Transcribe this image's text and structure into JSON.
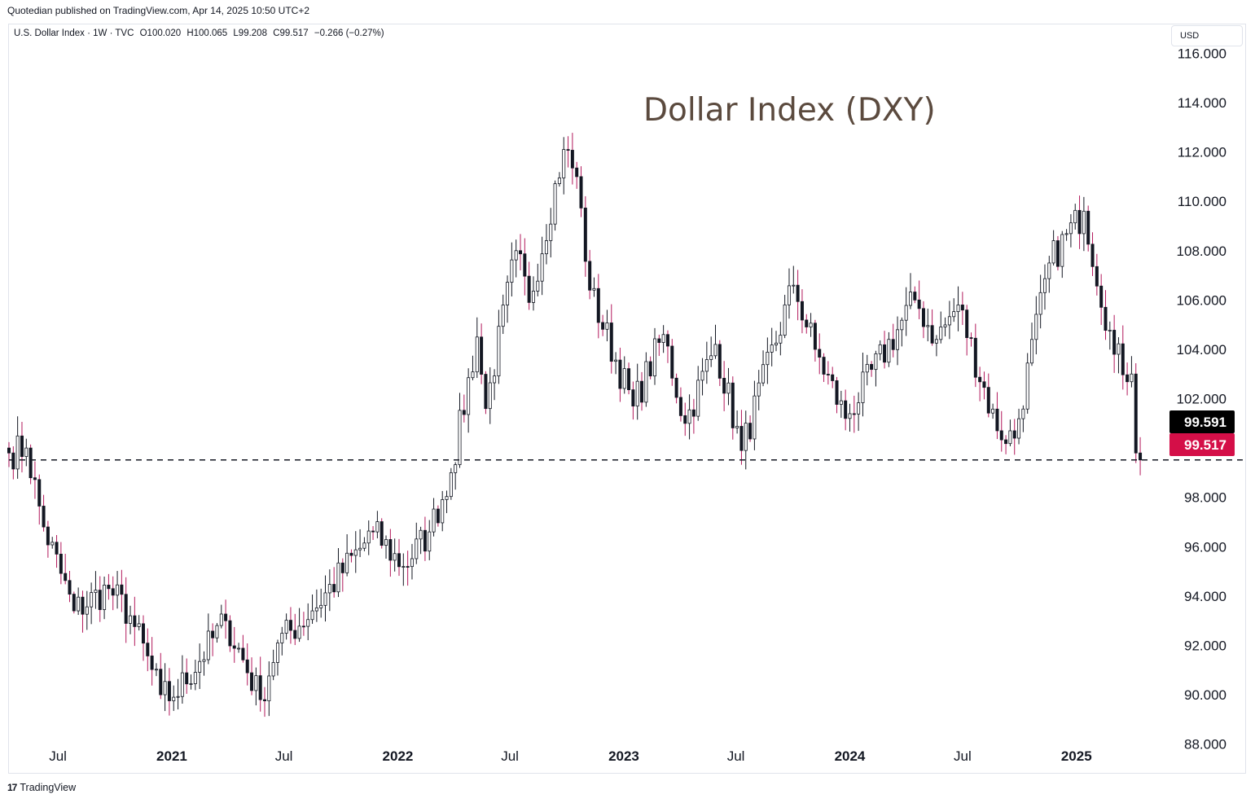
{
  "publisher_line": "Quotedian published on TradingView.com, Apr 14, 2025 10:50 UTC+2",
  "legend": {
    "symbol": "U.S. Dollar Index · 1W · TVC",
    "open": "O100.020",
    "high": "H100.065",
    "low": "L99.208",
    "close": "C99.517",
    "change": "−0.266 (−0.27%)"
  },
  "currency": "USD",
  "footer": "TradingView",
  "colors": {
    "up": "#131722",
    "down_body": "#131722",
    "down_wick": "#b2185b",
    "label_black": "#000000",
    "label_red": "#d40f48",
    "annotation": "#5b4a3e"
  },
  "chart_data": {
    "type": "candlestick",
    "title": "Dollar Index (DXY)",
    "interval": "1W",
    "y_axis": {
      "side": "right",
      "ticks": [
        "116.000",
        "114.000",
        "112.000",
        "110.000",
        "108.000",
        "106.000",
        "104.000",
        "102.000",
        "100.000",
        "98.000",
        "96.000",
        "94.000",
        "92.000",
        "90.000",
        "88.000"
      ],
      "range": [
        86.8,
        117.5
      ]
    },
    "x_axis": {
      "range": [
        "2020-04-13",
        "2025-05-26"
      ],
      "ticks": [
        {
          "label": "Jul",
          "date": "2020-07-01",
          "bold": false
        },
        {
          "label": "2021",
          "date": "2021-01-01",
          "bold": true
        },
        {
          "label": "Jul",
          "date": "2021-07-01",
          "bold": false
        },
        {
          "label": "2022",
          "date": "2022-01-01",
          "bold": true
        },
        {
          "label": "Jul",
          "date": "2022-07-01",
          "bold": false
        },
        {
          "label": "2023",
          "date": "2023-01-01",
          "bold": true
        },
        {
          "label": "Jul",
          "date": "2023-07-01",
          "bold": false
        },
        {
          "label": "2024",
          "date": "2024-01-01",
          "bold": true
        },
        {
          "label": "Jul",
          "date": "2024-07-01",
          "bold": false
        },
        {
          "label": "2025",
          "date": "2025-01-01",
          "bold": true
        }
      ]
    },
    "price_labels": [
      {
        "value": 99.591,
        "text": "99.591",
        "color": "#000000"
      },
      {
        "value": 99.517,
        "text": "99.517",
        "color": "#d40f48"
      }
    ],
    "horizontal_line": {
      "value": 99.517,
      "style": "dashed"
    },
    "anchors": [
      {
        "date": "2020-04-13",
        "close": 99.8
      },
      {
        "date": "2020-05-11",
        "close": 100.0
      },
      {
        "date": "2020-06-08",
        "close": 96.8
      },
      {
        "date": "2020-07-27",
        "close": 93.4
      },
      {
        "date": "2020-09-21",
        "close": 94.3
      },
      {
        "date": "2020-10-26",
        "close": 93.2
      },
      {
        "date": "2020-12-14",
        "close": 90.0
      },
      {
        "date": "2021-01-04",
        "close": 89.9
      },
      {
        "date": "2021-03-29",
        "close": 93.0
      },
      {
        "date": "2021-05-24",
        "close": 89.8
      },
      {
        "date": "2021-06-21",
        "close": 92.1
      },
      {
        "date": "2021-08-16",
        "close": 93.4
      },
      {
        "date": "2021-11-22",
        "close": 96.6
      },
      {
        "date": "2022-01-10",
        "close": 95.2
      },
      {
        "date": "2022-02-21",
        "close": 96.6
      },
      {
        "date": "2022-03-28",
        "close": 99.0
      },
      {
        "date": "2022-05-09",
        "close": 104.5
      },
      {
        "date": "2022-05-23",
        "close": 101.6
      },
      {
        "date": "2022-07-11",
        "close": 108.0
      },
      {
        "date": "2022-08-01",
        "close": 105.9
      },
      {
        "date": "2022-09-26",
        "close": 112.1
      },
      {
        "date": "2022-10-17",
        "close": 111.0
      },
      {
        "date": "2022-11-07",
        "close": 106.4
      },
      {
        "date": "2023-01-16",
        "close": 101.7
      },
      {
        "date": "2023-03-06",
        "close": 104.6
      },
      {
        "date": "2023-04-10",
        "close": 101.0
      },
      {
        "date": "2023-05-29",
        "close": 104.2
      },
      {
        "date": "2023-07-10",
        "close": 99.9
      },
      {
        "date": "2023-10-02",
        "close": 106.6
      },
      {
        "date": "2023-11-06",
        "close": 104.0
      },
      {
        "date": "2023-12-25",
        "close": 101.2
      },
      {
        "date": "2024-04-15",
        "close": 106.0
      },
      {
        "date": "2024-05-20",
        "close": 104.4
      },
      {
        "date": "2024-06-24",
        "close": 105.8
      },
      {
        "date": "2024-08-26",
        "close": 100.7
      },
      {
        "date": "2024-09-23",
        "close": 100.4
      },
      {
        "date": "2024-11-18",
        "close": 107.5
      },
      {
        "date": "2025-01-13",
        "close": 109.6
      },
      {
        "date": "2025-03-03",
        "close": 103.8
      },
      {
        "date": "2025-03-31",
        "close": 103.0
      },
      {
        "date": "2025-04-07",
        "close": 99.8
      },
      {
        "date": "2025-04-14",
        "close": 99.517
      }
    ]
  }
}
